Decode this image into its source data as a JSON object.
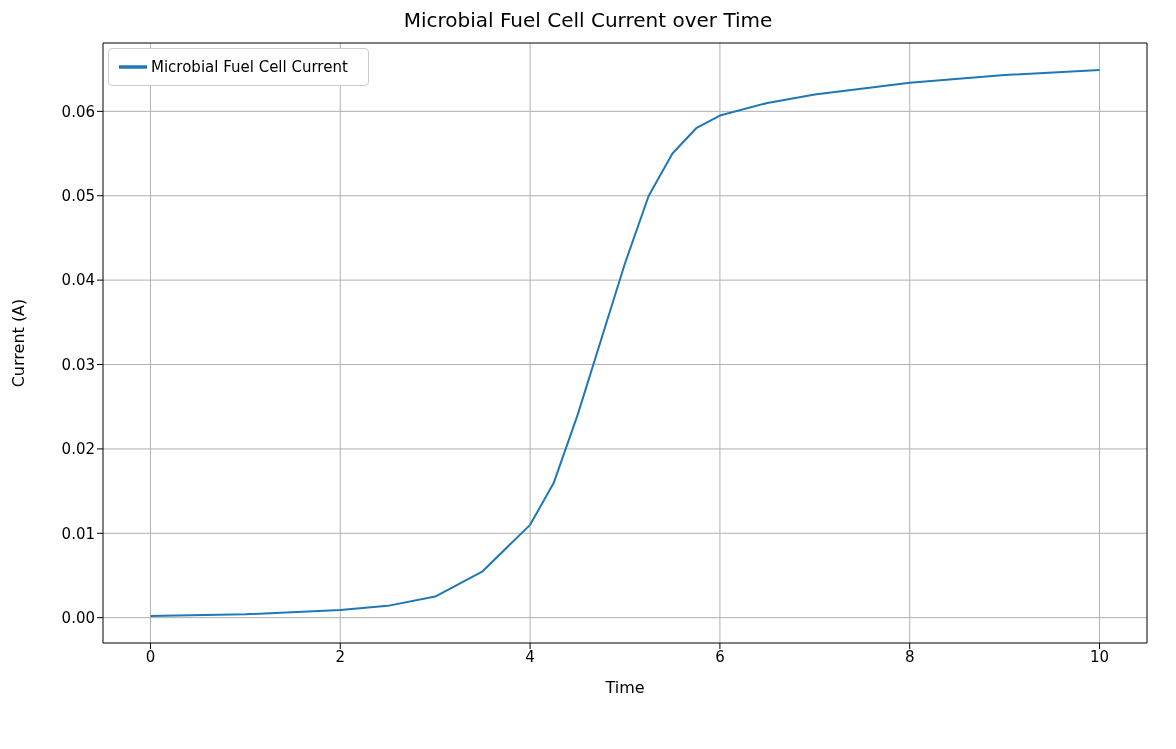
{
  "chart_data": {
    "type": "line",
    "title": "Microbial Fuel Cell Current over Time",
    "xlabel": "Time",
    "ylabel": "Current (A)",
    "x": [
      0,
      1,
      2,
      2.5,
      3,
      3.5,
      4,
      4.25,
      4.5,
      4.75,
      5,
      5.25,
      5.5,
      5.75,
      6,
      6.5,
      7,
      8,
      9,
      10
    ],
    "series": [
      {
        "name": "Microbial Fuel Cell Current",
        "color": "#1f77b4",
        "values": [
          0.0002,
          0.0004,
          0.0009,
          0.0014,
          0.0025,
          0.0055,
          0.011,
          0.016,
          0.024,
          0.033,
          0.042,
          0.05,
          0.055,
          0.058,
          0.0595,
          0.061,
          0.062,
          0.0634,
          0.0643,
          0.0649
        ]
      }
    ],
    "xlim": [
      -0.5,
      10.5
    ],
    "xticks": [
      0,
      2,
      4,
      6,
      8,
      10
    ],
    "ylim": [
      -0.003,
      0.0681
    ],
    "yticks": [
      {
        "value": 0,
        "label": "0.00"
      },
      {
        "value": 0.01,
        "label": "0.01"
      },
      {
        "value": 0.02,
        "label": "0.02"
      },
      {
        "value": 0.03,
        "label": "0.03"
      },
      {
        "value": 0.04,
        "label": "0.04"
      },
      {
        "value": 0.05,
        "label": "0.05"
      },
      {
        "value": 0.06,
        "label": "0.06"
      }
    ],
    "grid": true,
    "legend": "top left"
  }
}
